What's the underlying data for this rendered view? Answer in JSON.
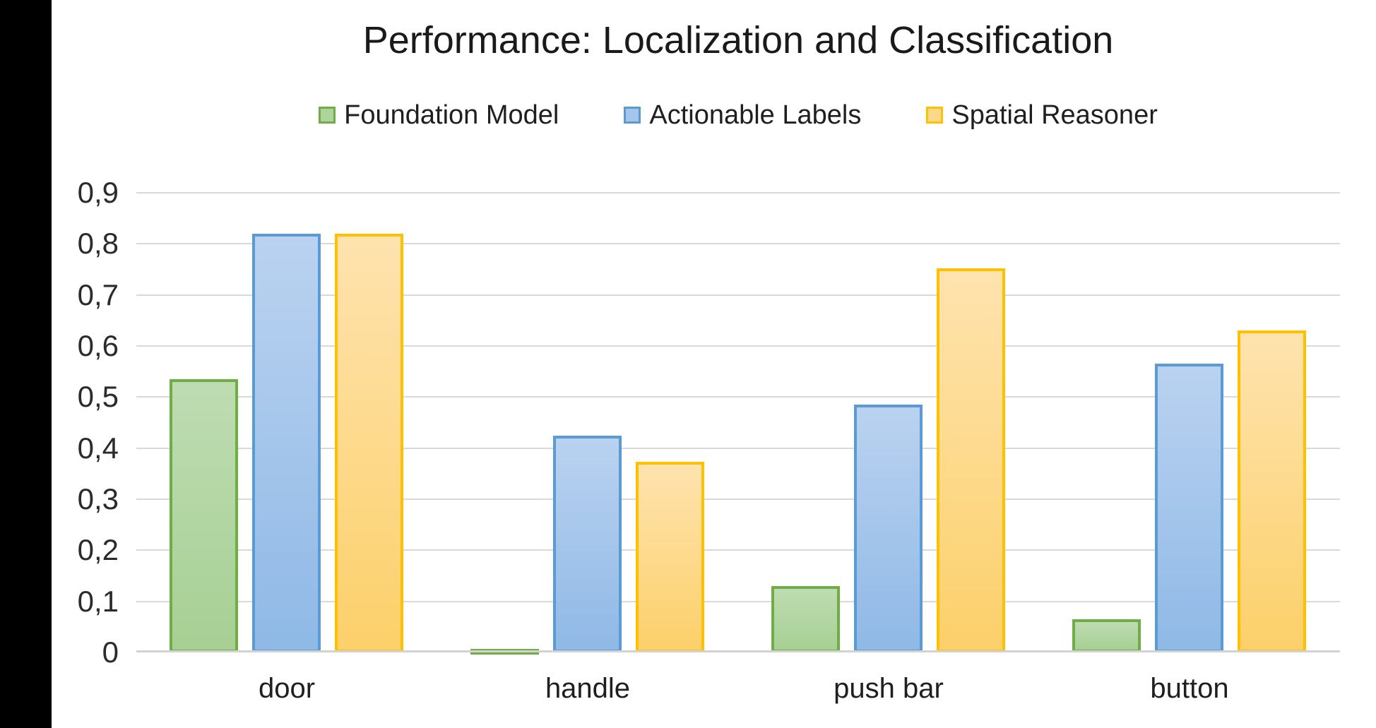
{
  "window": {
    "background_color": "#ffffff",
    "letterbox_color": "#000000"
  },
  "chart_data": {
    "type": "bar",
    "title": "Performance: Localization and Classification",
    "categories": [
      "door",
      "handle",
      "push bar",
      "button"
    ],
    "series": [
      {
        "name": "Foundation Model",
        "border_color": "#70ad47",
        "fill_top": "#bedcb2",
        "fill_bottom": "#a7d094",
        "legend_fill": "#aed49c",
        "values": [
          0.535,
          0.005,
          0.13,
          0.065
        ]
      },
      {
        "name": "Actionable Labels",
        "border_color": "#5b9bd5",
        "fill_top": "#bad2f0",
        "fill_bottom": "#8fb9e6",
        "legend_fill": "#a5c6ea",
        "values": [
          0.82,
          0.425,
          0.485,
          0.565
        ]
      },
      {
        "name": "Spatial Reasoner",
        "border_color": "#ffc000",
        "fill_top": "#fee3ae",
        "fill_bottom": "#fcd06a",
        "legend_fill": "#fcd98a",
        "values": [
          0.82,
          0.373,
          0.752,
          0.63
        ]
      }
    ],
    "xlabel": "",
    "ylabel": "",
    "ylim": [
      0,
      0.9
    ],
    "ytick_step": 0.1,
    "ytick_labels": [
      "0",
      "0,1",
      "0,2",
      "0,3",
      "0,4",
      "0,5",
      "0,6",
      "0,7",
      "0,8",
      "0,9"
    ],
    "decimal_separator": ",",
    "grid": true,
    "gridline_color": "#d9d9d9",
    "baseline_color": "#d2d2d2",
    "axis_text_color": "#2b2b2b",
    "title_color": "#1a1a1a",
    "legend_position": "top"
  }
}
